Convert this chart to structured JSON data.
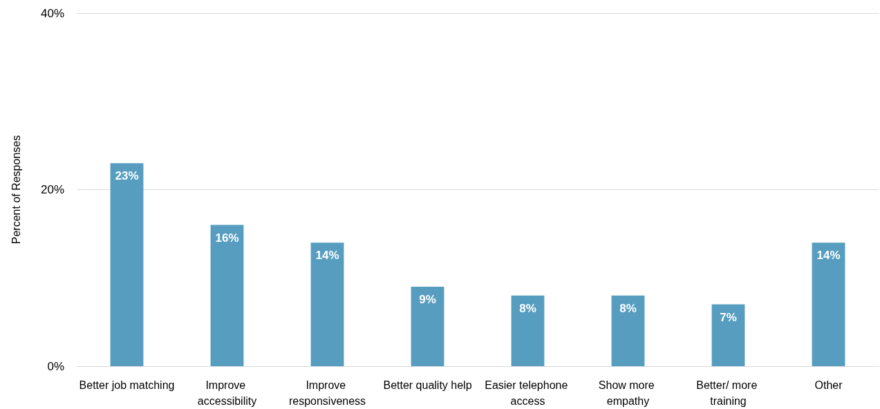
{
  "chart_data": {
    "type": "bar",
    "ylabel": "Percent of Responses",
    "categories": [
      "Better job matching",
      "Improve accessibility",
      "Improve responsiveness",
      "Better quality help",
      "Easier telephone access",
      "Show more empathy",
      "Better/ more training",
      "Other"
    ],
    "values": [
      23,
      16,
      14,
      9,
      8,
      8,
      7,
      14
    ],
    "value_labels": [
      "23%",
      "16%",
      "14%",
      "9%",
      "8%",
      "8%",
      "7%",
      "14%"
    ],
    "color": "#579dbf",
    "ylim": [
      0,
      40
    ],
    "yticks": [
      {
        "value": 0,
        "label": "0%"
      },
      {
        "value": 20,
        "label": "20%"
      },
      {
        "value": 40,
        "label": "40%"
      }
    ],
    "grid": "y"
  }
}
